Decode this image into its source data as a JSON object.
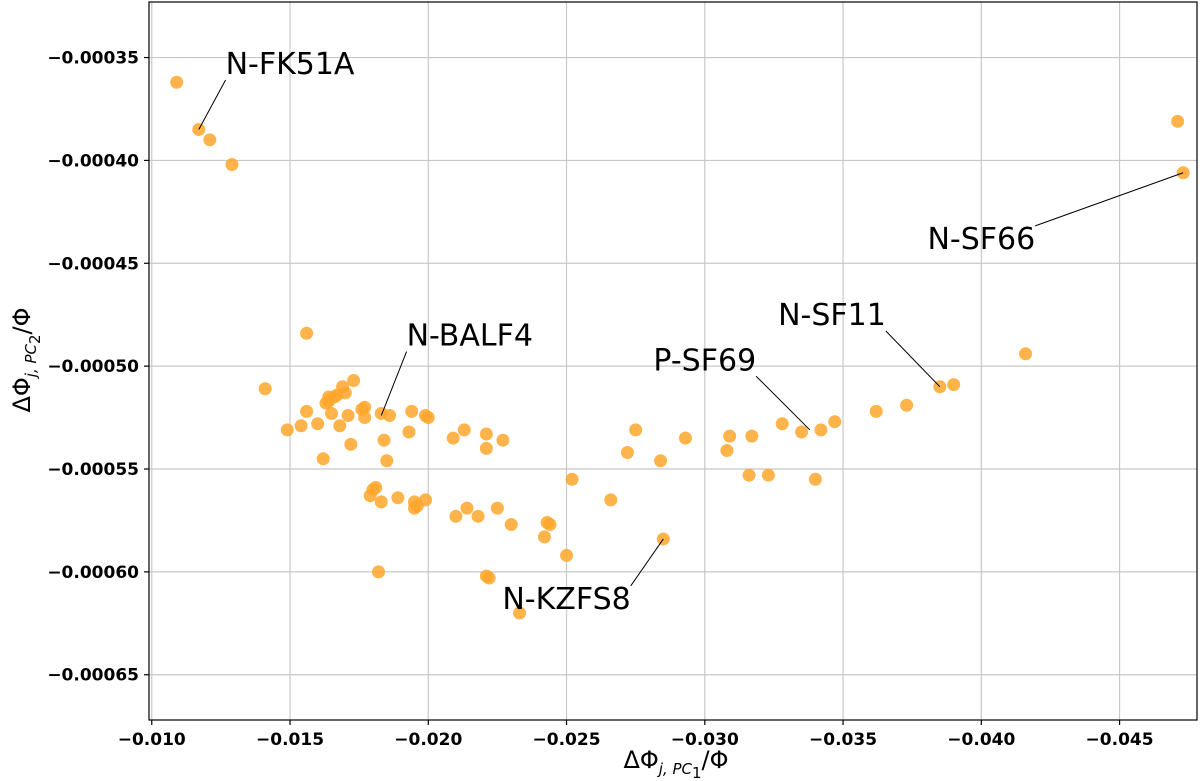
{
  "chart_data": {
    "type": "scatter",
    "xlabel_parts": {
      "delta_phi": "ΔΦ",
      "sub": "j, PC",
      "sub_index": "1",
      "tail": "/Φ"
    },
    "ylabel_parts": {
      "delta_phi": "ΔΦ",
      "sub": "j, PC",
      "sub_index": "2",
      "tail": "/Φ"
    },
    "xlim": [
      -0.0099,
      -0.0478
    ],
    "ylim": [
      -0.000672,
      -0.000323
    ],
    "x_ticks": [
      -0.01,
      -0.015,
      -0.02,
      -0.025,
      -0.03,
      -0.035,
      -0.04,
      -0.045
    ],
    "x_tick_labels": [
      "−0.010",
      "−0.015",
      "−0.020",
      "−0.025",
      "−0.030",
      "−0.035",
      "−0.040",
      "−0.045"
    ],
    "y_ticks": [
      -0.00035,
      -0.0004,
      -0.00045,
      -0.0005,
      -0.00055,
      -0.0006,
      -0.00065
    ],
    "y_tick_labels": [
      "−0.00035",
      "−0.00040",
      "−0.00045",
      "−0.00050",
      "−0.00055",
      "−0.00060",
      "−0.00065"
    ],
    "grid": true,
    "point_color": "#FFA62B",
    "x": [
      -0.0109,
      -0.0117,
      -0.0121,
      -0.0129,
      -0.0471,
      -0.0473,
      -0.0416,
      -0.039,
      -0.0385,
      -0.0373,
      -0.0362,
      -0.0347,
      -0.0342,
      -0.0335,
      -0.034,
      -0.0328,
      -0.0323,
      -0.0317,
      -0.0316,
      -0.0309,
      -0.0308,
      -0.0293,
      -0.0285,
      -0.0284,
      -0.0275,
      -0.0272,
      -0.0266,
      -0.0252,
      -0.025,
      -0.0243,
      -0.0244,
      -0.0242,
      -0.0233,
      -0.023,
      -0.0225,
      -0.0222,
      -0.0227,
      -0.0221,
      -0.0221,
      -0.0218,
      -0.0214,
      -0.0213,
      -0.021,
      -0.0209,
      -0.0199,
      -0.0196,
      -0.0195,
      -0.0194,
      -0.0195,
      -0.0193,
      -0.0189,
      -0.0186,
      -0.0185,
      -0.0184,
      -0.0183,
      -0.0182,
      -0.0181,
      -0.018,
      -0.0179,
      -0.0177,
      -0.0177,
      -0.0176,
      -0.0173,
      -0.0172,
      -0.0171,
      -0.017,
      -0.0169,
      -0.0168,
      -0.0167,
      -0.0166,
      -0.0165,
      -0.0164,
      -0.0164,
      -0.0163,
      -0.0162,
      -0.016,
      -0.0156,
      -0.0156,
      -0.0154,
      -0.0149,
      -0.0141,
      -0.02,
      -0.0199,
      -0.0183,
      -0.0221
    ],
    "y": [
      -0.000362,
      -0.000385,
      -0.00039,
      -0.000402,
      -0.000381,
      -0.000406,
      -0.000494,
      -0.000509,
      -0.00051,
      -0.000519,
      -0.000522,
      -0.000527,
      -0.000531,
      -0.000532,
      -0.000555,
      -0.000528,
      -0.000553,
      -0.000534,
      -0.000553,
      -0.000534,
      -0.000541,
      -0.000535,
      -0.000584,
      -0.000546,
      -0.000531,
      -0.000542,
      -0.000565,
      -0.000555,
      -0.000592,
      -0.000576,
      -0.000577,
      -0.000583,
      -0.00062,
      -0.000577,
      -0.000569,
      -0.000603,
      -0.000536,
      -0.000533,
      -0.00054,
      -0.000573,
      -0.000569,
      -0.000531,
      -0.000573,
      -0.000535,
      -0.000565,
      -0.000568,
      -0.000566,
      -0.000522,
      -0.000569,
      -0.000532,
      -0.000564,
      -0.000524,
      -0.000546,
      -0.000536,
      -0.000566,
      -0.0006,
      -0.000559,
      -0.00056,
      -0.000563,
      -0.00052,
      -0.000525,
      -0.000521,
      -0.000507,
      -0.000538,
      -0.000524,
      -0.000513,
      -0.00051,
      -0.000529,
      -0.000514,
      -0.000515,
      -0.000523,
      -0.000517,
      -0.000515,
      -0.000518,
      -0.000545,
      -0.000528,
      -0.000484,
      -0.000522,
      -0.000529,
      -0.000531,
      -0.000511,
      -0.000525,
      -0.000524,
      -0.000523,
      -0.000602
    ],
    "annotations": [
      {
        "text": "N-FK51A",
        "x": -0.0117,
        "y": -0.000385,
        "text_x": -0.015,
        "text_y": -0.000358
      },
      {
        "text": "N-SF66",
        "x": -0.0473,
        "y": -0.000406,
        "text_x": -0.04,
        "text_y": -0.000443
      },
      {
        "text": "N-BALF4",
        "x": -0.0183,
        "y": -0.000524,
        "text_x": -0.0215,
        "text_y": -0.00049
      },
      {
        "text": "N-SF11",
        "x": -0.0385,
        "y": -0.00051,
        "text_x": -0.0346,
        "text_y": -0.00048
      },
      {
        "text": "P-SF69",
        "x": -0.0338,
        "y": -0.000531,
        "text_x": -0.03,
        "text_y": -0.000502
      },
      {
        "text": "N-KZFS8",
        "x": -0.0285,
        "y": -0.000584,
        "text_x": -0.025,
        "text_y": -0.000618
      }
    ]
  }
}
